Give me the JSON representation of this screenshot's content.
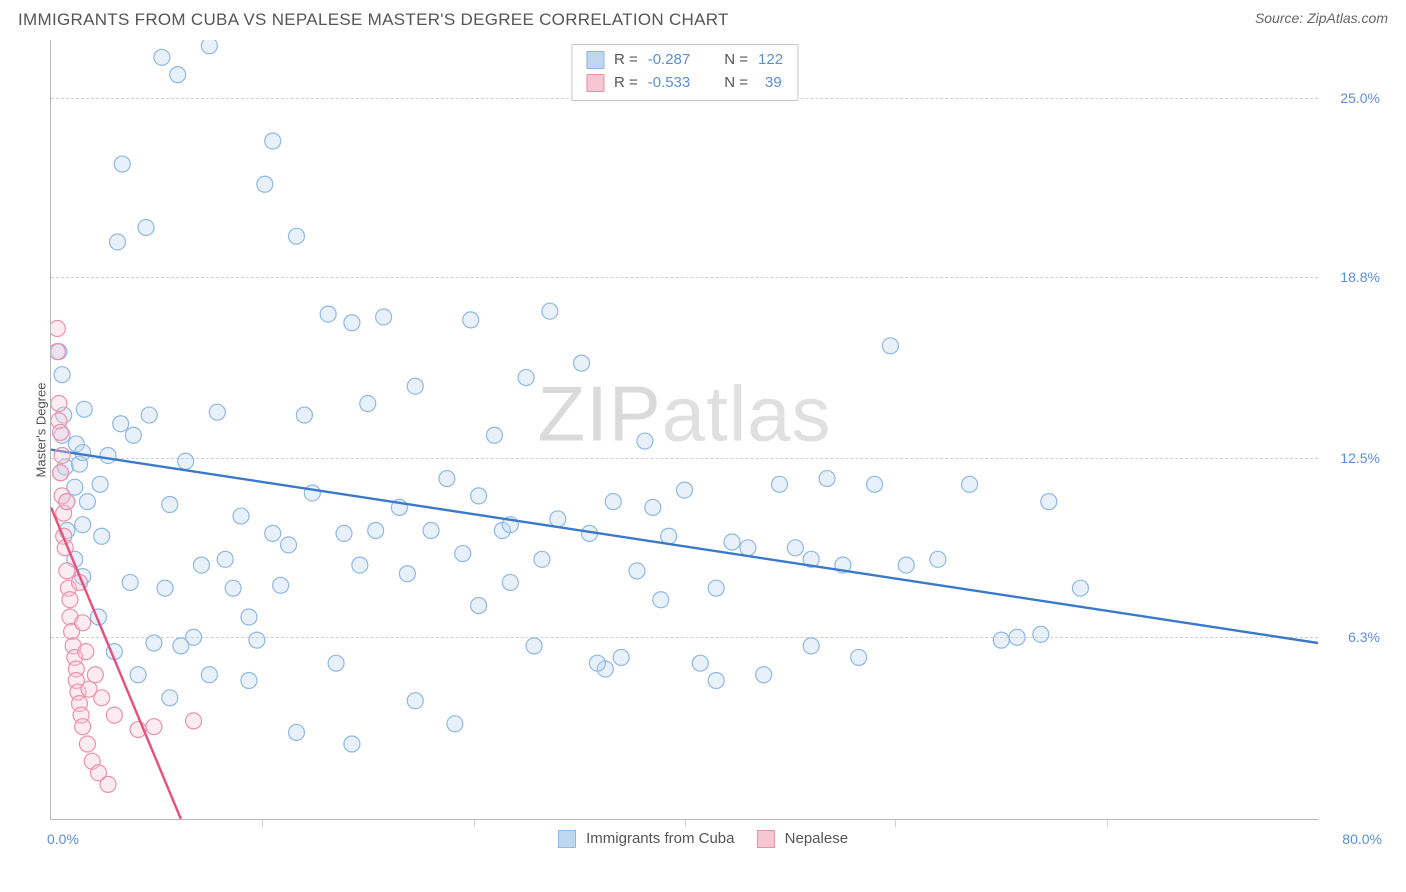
{
  "header": {
    "title": "IMMIGRANTS FROM CUBA VS NEPALESE MASTER'S DEGREE CORRELATION CHART",
    "source_label": "Source:",
    "source_value": "ZipAtlas.com"
  },
  "chart": {
    "type": "scatter",
    "ylabel": "Master's Degree",
    "xlim": [
      0.0,
      80.0
    ],
    "ylim": [
      0.0,
      27.0
    ],
    "x_axis_label_min": "0.0%",
    "x_axis_label_max": "80.0%",
    "y_ticks": [
      6.3,
      12.5,
      18.8,
      25.0
    ],
    "y_tick_labels": [
      "6.3%",
      "12.5%",
      "18.8%",
      "25.0%"
    ],
    "x_tick_positions": [
      13.3,
      26.7,
      40.0,
      53.3,
      66.7
    ],
    "grid_color": "#cfcfcf",
    "axis_color": "#b7b7b7",
    "tick_label_color": "#5a8fd6",
    "background_color": "#ffffff",
    "point_radius": 8,
    "watermark_text": "ZIPatlas",
    "series": [
      {
        "name": "Immigrants from Cuba",
        "fill": "#bdd7f0",
        "stroke": "#8fb8e3",
        "line_color": "#3a78c9",
        "R": "-0.287",
        "N": "122",
        "trend": {
          "x1": 0.0,
          "y1": 12.8,
          "x2": 80.0,
          "y2": 6.1
        },
        "points": [
          [
            0.5,
            16.2
          ],
          [
            0.6,
            12.0
          ],
          [
            0.7,
            15.4
          ],
          [
            0.7,
            13.3
          ],
          [
            0.8,
            14.0
          ],
          [
            0.9,
            12.2
          ],
          [
            1.0,
            11.0
          ],
          [
            1.5,
            11.5
          ],
          [
            1.6,
            13.0
          ],
          [
            1.8,
            12.3
          ],
          [
            2.0,
            10.2
          ],
          [
            2.0,
            12.7
          ],
          [
            2.1,
            14.2
          ],
          [
            2.3,
            11.0
          ],
          [
            3.1,
            11.6
          ],
          [
            3.2,
            9.8
          ],
          [
            3.6,
            12.6
          ],
          [
            4.2,
            20.0
          ],
          [
            4.4,
            13.7
          ],
          [
            4.5,
            22.7
          ],
          [
            5.0,
            8.2
          ],
          [
            5.2,
            13.3
          ],
          [
            6.0,
            20.5
          ],
          [
            6.2,
            14.0
          ],
          [
            6.5,
            6.1
          ],
          [
            7.0,
            26.4
          ],
          [
            7.2,
            8.0
          ],
          [
            7.5,
            10.9
          ],
          [
            8.0,
            25.8
          ],
          [
            8.2,
            6.0
          ],
          [
            8.5,
            12.4
          ],
          [
            9.0,
            6.3
          ],
          [
            9.5,
            8.8
          ],
          [
            10.0,
            26.8
          ],
          [
            10.5,
            14.1
          ],
          [
            11.0,
            9.0
          ],
          [
            11.5,
            8.0
          ],
          [
            12.0,
            10.5
          ],
          [
            12.5,
            7.0
          ],
          [
            13.0,
            6.2
          ],
          [
            13.5,
            22.0
          ],
          [
            14.0,
            9.9
          ],
          [
            14.0,
            23.5
          ],
          [
            14.5,
            8.1
          ],
          [
            15.0,
            9.5
          ],
          [
            15.5,
            20.2
          ],
          [
            16.0,
            14.0
          ],
          [
            16.5,
            11.3
          ],
          [
            17.5,
            17.5
          ],
          [
            18.0,
            5.4
          ],
          [
            18.5,
            9.9
          ],
          [
            19.0,
            17.2
          ],
          [
            19.5,
            8.8
          ],
          [
            20.0,
            14.4
          ],
          [
            20.5,
            10.0
          ],
          [
            21.0,
            17.4
          ],
          [
            22.0,
            10.8
          ],
          [
            22.5,
            8.5
          ],
          [
            23.0,
            15.0
          ],
          [
            24.0,
            10.0
          ],
          [
            25.0,
            11.8
          ],
          [
            25.5,
            3.3
          ],
          [
            26.0,
            9.2
          ],
          [
            27.0,
            11.2
          ],
          [
            28.0,
            13.3
          ],
          [
            28.5,
            10.0
          ],
          [
            29.0,
            10.2
          ],
          [
            29.0,
            8.2
          ],
          [
            30.0,
            15.3
          ],
          [
            30.5,
            6.0
          ],
          [
            31.0,
            9.0
          ],
          [
            31.5,
            17.6
          ],
          [
            32.0,
            10.4
          ],
          [
            33.5,
            15.8
          ],
          [
            34.0,
            9.9
          ],
          [
            35.0,
            5.2
          ],
          [
            35.5,
            11.0
          ],
          [
            36.0,
            5.6
          ],
          [
            37.0,
            8.6
          ],
          [
            38.0,
            10.8
          ],
          [
            38.5,
            7.6
          ],
          [
            39.0,
            9.8
          ],
          [
            40.0,
            11.4
          ],
          [
            41.0,
            5.4
          ],
          [
            42.0,
            8.0
          ],
          [
            43.0,
            9.6
          ],
          [
            44.0,
            9.4
          ],
          [
            45.0,
            5.0
          ],
          [
            46.0,
            11.6
          ],
          [
            47.0,
            9.4
          ],
          [
            48.0,
            9.0
          ],
          [
            49.0,
            11.8
          ],
          [
            50.0,
            8.8
          ],
          [
            51.0,
            5.6
          ],
          [
            52.0,
            11.6
          ],
          [
            53.0,
            16.4
          ],
          [
            54.0,
            8.8
          ],
          [
            56.0,
            9.0
          ],
          [
            58.0,
            11.6
          ],
          [
            60.0,
            6.2
          ],
          [
            61.0,
            6.3
          ],
          [
            62.5,
            6.4
          ],
          [
            63.0,
            11.0
          ],
          [
            65.0,
            8.0
          ],
          [
            48.0,
            6.0
          ],
          [
            42.0,
            4.8
          ],
          [
            34.5,
            5.4
          ],
          [
            27.0,
            7.4
          ],
          [
            23.0,
            4.1
          ],
          [
            19.0,
            2.6
          ],
          [
            15.5,
            3.0
          ],
          [
            12.5,
            4.8
          ],
          [
            10.0,
            5.0
          ],
          [
            7.5,
            4.2
          ],
          [
            5.5,
            5.0
          ],
          [
            4.0,
            5.8
          ],
          [
            3.0,
            7.0
          ],
          [
            2.0,
            8.4
          ],
          [
            1.5,
            9.0
          ],
          [
            1.0,
            10.0
          ],
          [
            26.5,
            17.3
          ],
          [
            37.5,
            13.1
          ]
        ]
      },
      {
        "name": "Nepalese",
        "fill": "#f6c6d3",
        "stroke": "#eb92ab",
        "line_color": "#e84f7a",
        "R": "-0.533",
        "N": "39",
        "trend": {
          "x1": 0.0,
          "y1": 10.8,
          "x2": 8.2,
          "y2": 0.0
        },
        "points": [
          [
            0.4,
            17.0
          ],
          [
            0.4,
            16.2
          ],
          [
            0.5,
            14.4
          ],
          [
            0.5,
            13.8
          ],
          [
            0.6,
            13.4
          ],
          [
            0.6,
            12.0
          ],
          [
            0.7,
            12.6
          ],
          [
            0.7,
            11.2
          ],
          [
            0.8,
            10.6
          ],
          [
            0.8,
            9.8
          ],
          [
            0.9,
            9.4
          ],
          [
            1.0,
            11.0
          ],
          [
            1.0,
            8.6
          ],
          [
            1.1,
            8.0
          ],
          [
            1.2,
            7.6
          ],
          [
            1.2,
            7.0
          ],
          [
            1.3,
            6.5
          ],
          [
            1.4,
            6.0
          ],
          [
            1.5,
            5.6
          ],
          [
            1.6,
            5.2
          ],
          [
            1.6,
            4.8
          ],
          [
            1.7,
            4.4
          ],
          [
            1.8,
            8.2
          ],
          [
            1.8,
            4.0
          ],
          [
            1.9,
            3.6
          ],
          [
            2.0,
            6.8
          ],
          [
            2.0,
            3.2
          ],
          [
            2.2,
            5.8
          ],
          [
            2.3,
            2.6
          ],
          [
            2.4,
            4.5
          ],
          [
            2.6,
            2.0
          ],
          [
            2.8,
            5.0
          ],
          [
            3.0,
            1.6
          ],
          [
            3.2,
            4.2
          ],
          [
            3.6,
            1.2
          ],
          [
            4.0,
            3.6
          ],
          [
            5.5,
            3.1
          ],
          [
            6.5,
            3.2
          ],
          [
            9.0,
            3.4
          ]
        ]
      }
    ]
  },
  "legend_top": {
    "R_label": "R =",
    "N_label": "N ="
  },
  "legend_bottom": {
    "items": [
      "Immigrants from Cuba",
      "Nepalese"
    ]
  }
}
